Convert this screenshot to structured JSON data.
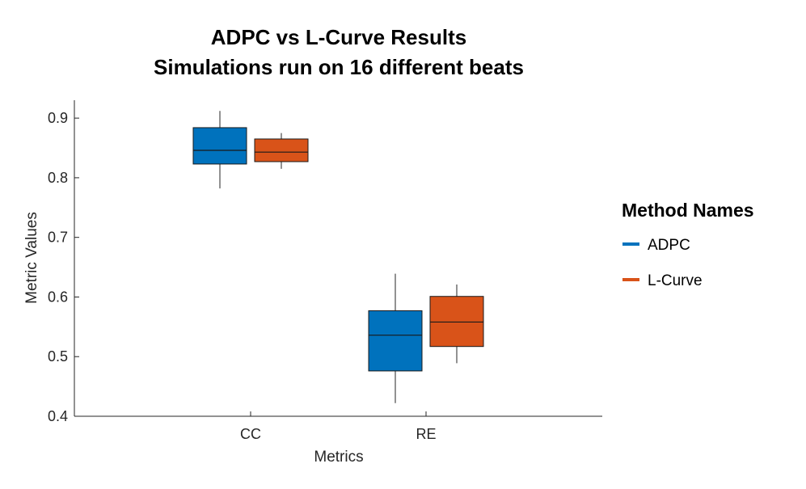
{
  "chart_data": {
    "type": "box",
    "title": [
      "ADPC vs L-Curve Results",
      "Simulations run on 16 different beats"
    ],
    "xlabel": "Metrics",
    "ylabel": "Metric Values",
    "categories": [
      "CC",
      "RE"
    ],
    "ylim": [
      0.4,
      0.93
    ],
    "yticks": [
      0.4,
      0.5,
      0.6,
      0.7,
      0.8,
      0.9
    ],
    "ytick_labels": [
      "0.4",
      "0.5",
      "0.6",
      "0.7",
      "0.8",
      "0.9"
    ],
    "legend": {
      "title": "Method Names",
      "position": "right"
    },
    "grid": false,
    "series": [
      {
        "name": "ADPC",
        "color": "#0072BD",
        "boxes": [
          {
            "min": 0.782,
            "q1": 0.823,
            "median": 0.846,
            "q3": 0.884,
            "max": 0.912
          },
          {
            "min": 0.422,
            "q1": 0.476,
            "median": 0.536,
            "q3": 0.577,
            "max": 0.639
          }
        ]
      },
      {
        "name": "L-Curve",
        "color": "#D95319",
        "boxes": [
          {
            "min": 0.815,
            "q1": 0.827,
            "median": 0.843,
            "q3": 0.865,
            "max": 0.875
          },
          {
            "min": 0.489,
            "q1": 0.517,
            "median": 0.558,
            "q3": 0.601,
            "max": 0.621
          }
        ]
      }
    ]
  }
}
